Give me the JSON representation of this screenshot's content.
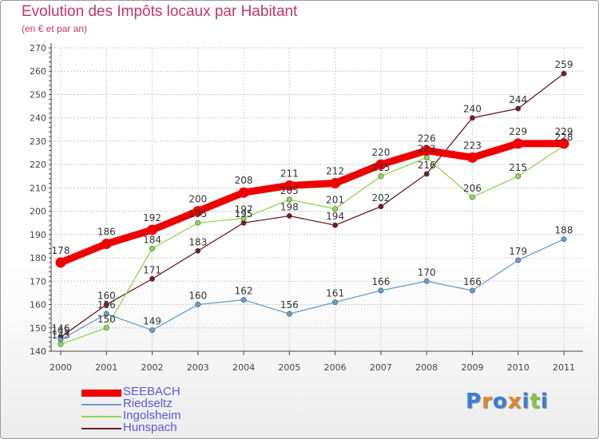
{
  "header": {
    "title": "Evolution des Impôts locaux par Habitant",
    "subtitle": "(en € et par an)"
  },
  "logo": {
    "text": "Proxiti",
    "letters": [
      "P",
      "r",
      "o",
      "x",
      "i",
      "t",
      "i"
    ],
    "colors": [
      "#3a7fd5",
      "#e0872a",
      "#3a7fd5",
      "#e0872a",
      "#3a7fd5",
      "#8ac53f",
      "#3a7fd5"
    ]
  },
  "chart_data": {
    "type": "line",
    "x": [
      "2000",
      "2001",
      "2002",
      "2003",
      "2004",
      "2005",
      "2006",
      "2007",
      "2008",
      "2009",
      "2010",
      "2011"
    ],
    "ylim": [
      140,
      270
    ],
    "yticks": [
      140,
      150,
      160,
      170,
      180,
      190,
      200,
      210,
      220,
      230,
      240,
      250,
      260,
      270
    ],
    "grid": true,
    "legend_position": "bottom-left",
    "series": [
      {
        "name": "SEEBACH",
        "color": "#ee0000",
        "values": [
          178,
          186,
          192,
          200,
          208,
          211,
          212,
          220,
          226,
          223,
          229,
          229
        ]
      },
      {
        "name": "Riedseltz",
        "color": "#6b9bcf",
        "values": [
          145,
          156,
          149,
          160,
          162,
          156,
          161,
          166,
          170,
          166,
          179,
          188
        ]
      },
      {
        "name": "Ingolsheim",
        "color": "#8ed84f",
        "values": [
          143,
          150,
          184,
          195,
          197,
          205,
          201,
          215,
          223,
          206,
          215,
          228
        ]
      },
      {
        "name": "Hunspach",
        "color": "#6e1e24",
        "values": [
          146,
          160,
          171,
          183,
          195,
          198,
          194,
          202,
          216,
          240,
          244,
          259
        ]
      }
    ]
  }
}
